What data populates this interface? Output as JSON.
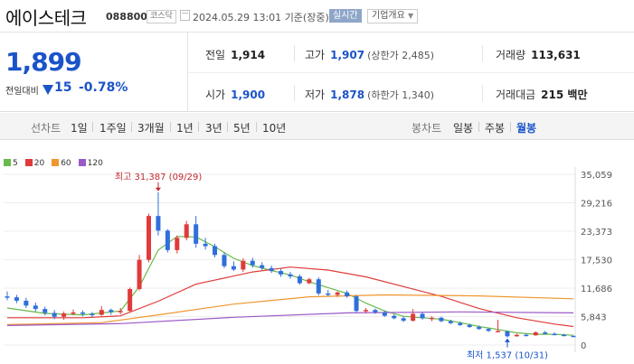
{
  "header": {
    "name": "에이스테크",
    "code": "088800",
    "market": "코스닥",
    "datetime": "2024.05.29 13:01",
    "basis": "기준(장중)",
    "realtime": "실시간",
    "company_info": "기업개요"
  },
  "summary": {
    "price": "1,899",
    "change_label": "전일대비",
    "change_value": "15",
    "change_pct": "-0.78%",
    "prev_close": {
      "label": "전일",
      "value": "1,914"
    },
    "open": {
      "label": "시가",
      "value": "1,900"
    },
    "high": {
      "label": "고가",
      "value": "1,907",
      "extra": "(상한가 2,485)"
    },
    "low": {
      "label": "저가",
      "value": "1,878",
      "extra": "(하한가 1,340)"
    },
    "volume": {
      "label": "거래량",
      "value": "113,631"
    },
    "amount": {
      "label": "거래대금",
      "value": "215 백만"
    }
  },
  "period_bar": {
    "line_chart_label": "선차트",
    "line_periods": [
      "1일",
      "1주일",
      "3개월",
      "1년",
      "3년",
      "5년",
      "10년"
    ],
    "candle_chart_label": "봉차트",
    "candle_periods": [
      "일봉",
      "주봉",
      "월봉"
    ],
    "selected_candle": "월봉"
  },
  "chart_data": {
    "type": "candlestick",
    "legend": [
      {
        "name": "5",
        "color": "#6aba4a"
      },
      {
        "name": "20",
        "color": "#e03a3a"
      },
      {
        "name": "60",
        "color": "#f0962e"
      },
      {
        "name": "120",
        "color": "#9b59c8"
      }
    ],
    "y_ticks": [
      35059,
      29216,
      23373,
      17530,
      11686,
      5843,
      0
    ],
    "y_tick_labels": [
      "35,059",
      "29,216",
      "23,373",
      "17,530",
      "11,686",
      "5,843",
      "0"
    ],
    "ylim": [
      0,
      35059
    ],
    "annotation_high": "최고 31,387 (09/29)",
    "annotation_low": "최저 1,537 (10/31)",
    "candles": [
      {
        "o": 10000,
        "h": 11000,
        "l": 9200,
        "c": 9800,
        "d": -1
      },
      {
        "o": 9800,
        "h": 10300,
        "l": 8600,
        "c": 9100,
        "d": -1
      },
      {
        "o": 9100,
        "h": 9700,
        "l": 7600,
        "c": 8100,
        "d": -1
      },
      {
        "o": 8100,
        "h": 8700,
        "l": 6900,
        "c": 7400,
        "d": -1
      },
      {
        "o": 7400,
        "h": 7900,
        "l": 6100,
        "c": 6600,
        "d": -1
      },
      {
        "o": 6600,
        "h": 7200,
        "l": 5300,
        "c": 5800,
        "d": -1
      },
      {
        "o": 5800,
        "h": 6900,
        "l": 5200,
        "c": 6500,
        "d": 1
      },
      {
        "o": 6500,
        "h": 7300,
        "l": 6100,
        "c": 6700,
        "d": 1
      },
      {
        "o": 6700,
        "h": 7100,
        "l": 5900,
        "c": 6400,
        "d": -1
      },
      {
        "o": 6400,
        "h": 6800,
        "l": 5700,
        "c": 6200,
        "d": -1
      },
      {
        "o": 6200,
        "h": 8000,
        "l": 6000,
        "c": 7200,
        "d": 1
      },
      {
        "o": 7200,
        "h": 7500,
        "l": 6200,
        "c": 6800,
        "d": -1
      },
      {
        "o": 6800,
        "h": 7600,
        "l": 6300,
        "c": 7000,
        "d": 1
      },
      {
        "o": 7000,
        "h": 11800,
        "l": 6900,
        "c": 11500,
        "d": 1
      },
      {
        "o": 11500,
        "h": 18500,
        "l": 11200,
        "c": 17500,
        "d": 1
      },
      {
        "o": 17500,
        "h": 27000,
        "l": 17000,
        "c": 26500,
        "d": 1
      },
      {
        "o": 26500,
        "h": 31387,
        "l": 22500,
        "c": 23500,
        "d": -1
      },
      {
        "o": 23500,
        "h": 23800,
        "l": 19000,
        "c": 19500,
        "d": -1
      },
      {
        "o": 19500,
        "h": 22500,
        "l": 18800,
        "c": 22000,
        "d": 1
      },
      {
        "o": 22000,
        "h": 25500,
        "l": 21500,
        "c": 24800,
        "d": 1
      },
      {
        "o": 24800,
        "h": 26500,
        "l": 20000,
        "c": 20800,
        "d": -1
      },
      {
        "o": 20800,
        "h": 22000,
        "l": 19600,
        "c": 20300,
        "d": -1
      },
      {
        "o": 20300,
        "h": 20800,
        "l": 18000,
        "c": 18500,
        "d": -1
      },
      {
        "o": 18500,
        "h": 19000,
        "l": 15800,
        "c": 16200,
        "d": -1
      },
      {
        "o": 16200,
        "h": 17200,
        "l": 15200,
        "c": 15500,
        "d": -1
      },
      {
        "o": 15500,
        "h": 17800,
        "l": 15000,
        "c": 17300,
        "d": 1
      },
      {
        "o": 17300,
        "h": 17900,
        "l": 15900,
        "c": 16400,
        "d": -1
      },
      {
        "o": 16400,
        "h": 17000,
        "l": 15400,
        "c": 15800,
        "d": -1
      },
      {
        "o": 15800,
        "h": 16300,
        "l": 14800,
        "c": 15200,
        "d": -1
      },
      {
        "o": 15200,
        "h": 15700,
        "l": 14000,
        "c": 14500,
        "d": -1
      },
      {
        "o": 14500,
        "h": 15000,
        "l": 13600,
        "c": 14100,
        "d": -1
      },
      {
        "o": 14100,
        "h": 14500,
        "l": 12400,
        "c": 12700,
        "d": -1
      },
      {
        "o": 12700,
        "h": 13800,
        "l": 12500,
        "c": 13500,
        "d": 1
      },
      {
        "o": 13500,
        "h": 13900,
        "l": 10200,
        "c": 10600,
        "d": -1
      },
      {
        "o": 10600,
        "h": 11300,
        "l": 10000,
        "c": 10300,
        "d": -1
      },
      {
        "o": 10300,
        "h": 11000,
        "l": 9900,
        "c": 10800,
        "d": 1
      },
      {
        "o": 10800,
        "h": 11200,
        "l": 9700,
        "c": 10000,
        "d": -1
      },
      {
        "o": 10000,
        "h": 10300,
        "l": 6600,
        "c": 7000,
        "d": -1
      },
      {
        "o": 7000,
        "h": 7600,
        "l": 6500,
        "c": 7200,
        "d": 1
      },
      {
        "o": 7200,
        "h": 7500,
        "l": 6400,
        "c": 6700,
        "d": -1
      },
      {
        "o": 6700,
        "h": 7100,
        "l": 5800,
        "c": 6000,
        "d": -1
      },
      {
        "o": 6000,
        "h": 6300,
        "l": 5300,
        "c": 5500,
        "d": -1
      },
      {
        "o": 5500,
        "h": 5900,
        "l": 4700,
        "c": 5000,
        "d": -1
      },
      {
        "o": 5000,
        "h": 7400,
        "l": 4800,
        "c": 6400,
        "d": 1
      },
      {
        "o": 6400,
        "h": 6700,
        "l": 5200,
        "c": 5500,
        "d": -1
      },
      {
        "o": 5500,
        "h": 5900,
        "l": 4900,
        "c": 5600,
        "d": 1
      },
      {
        "o": 5600,
        "h": 5800,
        "l": 4700,
        "c": 4900,
        "d": -1
      },
      {
        "o": 4900,
        "h": 5200,
        "l": 4300,
        "c": 4500,
        "d": -1
      },
      {
        "o": 4500,
        "h": 4800,
        "l": 3900,
        "c": 4100,
        "d": -1
      },
      {
        "o": 4100,
        "h": 4400,
        "l": 3500,
        "c": 3700,
        "d": -1
      },
      {
        "o": 3700,
        "h": 4000,
        "l": 3100,
        "c": 3300,
        "d": -1
      },
      {
        "o": 3300,
        "h": 3500,
        "l": 2700,
        "c": 2900,
        "d": -1
      },
      {
        "o": 2900,
        "h": 5200,
        "l": 2700,
        "c": 2800,
        "d": 1
      },
      {
        "o": 2800,
        "h": 3000,
        "l": 1537,
        "c": 1800,
        "d": -1
      },
      {
        "o": 1800,
        "h": 2300,
        "l": 1700,
        "c": 2100,
        "d": 1
      },
      {
        "o": 2100,
        "h": 2400,
        "l": 1800,
        "c": 2000,
        "d": -1
      },
      {
        "o": 2000,
        "h": 2800,
        "l": 1900,
        "c": 2600,
        "d": 1
      },
      {
        "o": 2600,
        "h": 2900,
        "l": 2200,
        "c": 2300,
        "d": -1
      },
      {
        "o": 2300,
        "h": 2600,
        "l": 2000,
        "c": 2100,
        "d": -1
      },
      {
        "o": 2100,
        "h": 2300,
        "l": 1800,
        "c": 1914,
        "d": -1
      },
      {
        "o": 1900,
        "h": 1907,
        "l": 1878,
        "c": 1899,
        "d": -1
      }
    ],
    "ma_lines": [
      {
        "name": "5",
        "color": "#6aba4a",
        "points": [
          [
            0,
            7600
          ],
          [
            4,
            6500
          ],
          [
            8,
            6200
          ],
          [
            12,
            7000
          ],
          [
            14,
            12000
          ],
          [
            16,
            19500
          ],
          [
            18,
            22300
          ],
          [
            20,
            22200
          ],
          [
            22,
            20200
          ],
          [
            24,
            17800
          ],
          [
            26,
            16300
          ],
          [
            28,
            15300
          ],
          [
            30,
            14400
          ],
          [
            32,
            13000
          ],
          [
            34,
            11800
          ],
          [
            36,
            10600
          ],
          [
            38,
            8600
          ],
          [
            40,
            7000
          ],
          [
            42,
            5900
          ],
          [
            44,
            5600
          ],
          [
            46,
            5300
          ],
          [
            48,
            4600
          ],
          [
            50,
            3800
          ],
          [
            52,
            3200
          ],
          [
            54,
            2500
          ],
          [
            56,
            2200
          ],
          [
            58,
            2200
          ],
          [
            60,
            2000
          ]
        ]
      },
      {
        "name": "20",
        "color": "#e03a3a",
        "points": [
          [
            0,
            5600
          ],
          [
            8,
            5600
          ],
          [
            12,
            6000
          ],
          [
            16,
            9000
          ],
          [
            20,
            12500
          ],
          [
            26,
            15000
          ],
          [
            30,
            16000
          ],
          [
            34,
            15400
          ],
          [
            38,
            14000
          ],
          [
            42,
            12000
          ],
          [
            46,
            10000
          ],
          [
            50,
            7500
          ],
          [
            54,
            5600
          ],
          [
            58,
            4300
          ],
          [
            60,
            3800
          ]
        ]
      },
      {
        "name": "60",
        "color": "#f0962e",
        "points": [
          [
            0,
            4200
          ],
          [
            10,
            4600
          ],
          [
            16,
            6200
          ],
          [
            24,
            8400
          ],
          [
            32,
            9900
          ],
          [
            40,
            10300
          ],
          [
            50,
            10100
          ],
          [
            60,
            9500
          ]
        ]
      },
      {
        "name": "120",
        "color": "#9b59c8",
        "points": [
          [
            0,
            4000
          ],
          [
            12,
            4400
          ],
          [
            24,
            5700
          ],
          [
            36,
            6600
          ],
          [
            48,
            6800
          ],
          [
            60,
            6600
          ]
        ]
      }
    ]
  }
}
